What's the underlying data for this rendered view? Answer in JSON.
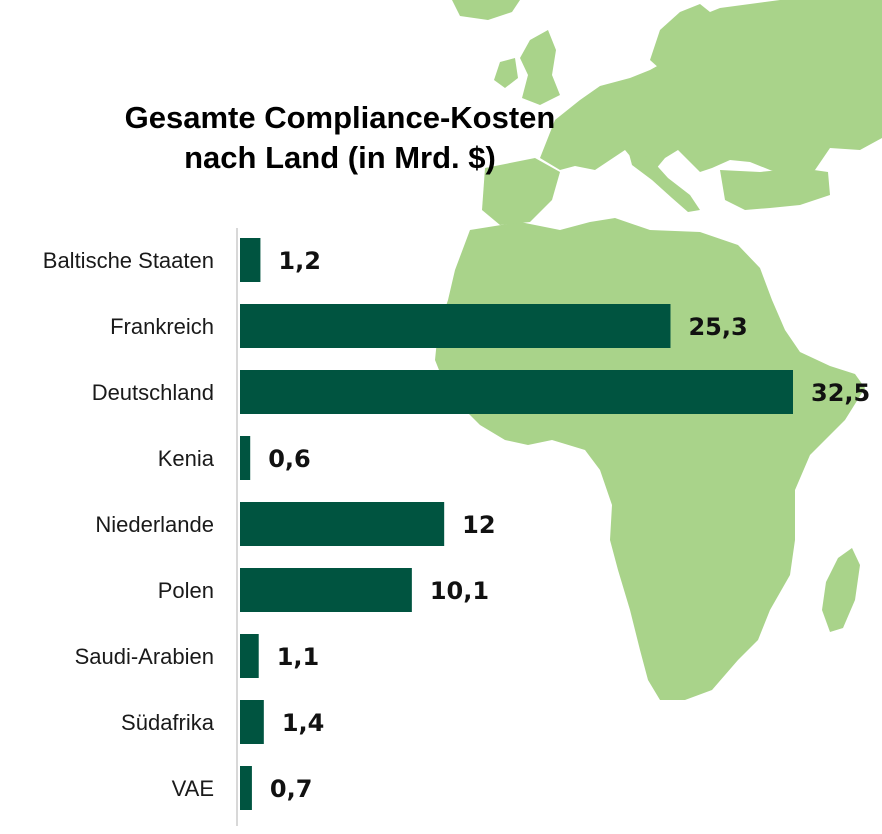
{
  "chart_data": {
    "type": "bar",
    "orientation": "horizontal",
    "title_line1": "Gesamte Compliance-Kosten",
    "title_line2": "nach Land (in Mrd. $)",
    "categories": [
      "Baltische Staaten",
      "Frankreich",
      "Deutschland",
      "Kenia",
      "Niederlande",
      "Polen",
      "Saudi-Arabien",
      "Südafrika",
      "VAE"
    ],
    "values": [
      1.2,
      25.3,
      32.5,
      0.6,
      12,
      10.1,
      1.1,
      1.4,
      0.7
    ],
    "value_labels": [
      "1,2",
      "25,3",
      "32,5",
      "0,6",
      "12",
      "10,1",
      "1,1",
      "1,4",
      "0,7"
    ],
    "xlim": [
      0,
      32.5
    ],
    "grid": false,
    "legend": "none",
    "bar_color": "#005440",
    "background_map_color": "#a9d38a"
  }
}
